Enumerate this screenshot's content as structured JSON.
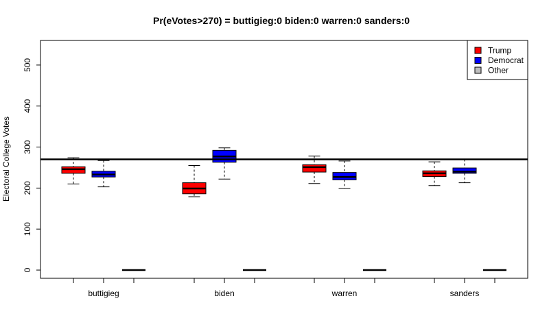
{
  "chart_data": {
    "type": "box",
    "title": "Pr(eVotes>270) = buttigieg:0  biden:0  warren:0  sanders:0",
    "xlabel": "",
    "ylabel": "Electoral College Votes",
    "ylim": [
      -20,
      560
    ],
    "yticks": [
      0,
      100,
      200,
      300,
      400,
      500
    ],
    "reference_line": 270,
    "categories": [
      "buttigieg",
      "biden",
      "warren",
      "sanders"
    ],
    "legend": {
      "position": "top-right",
      "entries": [
        {
          "name": "Trump",
          "color": "#ff0000"
        },
        {
          "name": "Democrat",
          "color": "#0000ff"
        },
        {
          "name": "Other",
          "color": "#bebebe"
        }
      ]
    },
    "series": [
      {
        "name": "Trump",
        "color": "#ff0000",
        "boxes": [
          {
            "min": 210,
            "q1": 236,
            "median": 246,
            "q3": 252,
            "max": 274
          },
          {
            "min": 179,
            "q1": 186,
            "median": 199,
            "q3": 213,
            "max": 255
          },
          {
            "min": 211,
            "q1": 239,
            "median": 251,
            "q3": 257,
            "max": 278
          },
          {
            "min": 206,
            "q1": 228,
            "median": 236,
            "q3": 242,
            "max": 264
          }
        ]
      },
      {
        "name": "Democrat",
        "color": "#0000ff",
        "boxes": [
          {
            "min": 203,
            "q1": 227,
            "median": 233,
            "q3": 241,
            "max": 267
          },
          {
            "min": 222,
            "q1": 263,
            "median": 277,
            "q3": 292,
            "max": 298
          },
          {
            "min": 199,
            "q1": 220,
            "median": 227,
            "q3": 238,
            "max": 266
          },
          {
            "min": 213,
            "q1": 236,
            "median": 240,
            "q3": 249,
            "max": 270
          }
        ]
      },
      {
        "name": "Other",
        "color": "#bebebe",
        "boxes": [
          {
            "min": 0,
            "q1": 0,
            "median": 0,
            "q3": 0,
            "max": 0
          },
          {
            "min": 0,
            "q1": 0,
            "median": 0,
            "q3": 0,
            "max": 0
          },
          {
            "min": 0,
            "q1": 0,
            "median": 0,
            "q3": 0,
            "max": 0
          },
          {
            "min": 0,
            "q1": 0,
            "median": 0,
            "q3": 0,
            "max": 0
          }
        ]
      }
    ]
  }
}
